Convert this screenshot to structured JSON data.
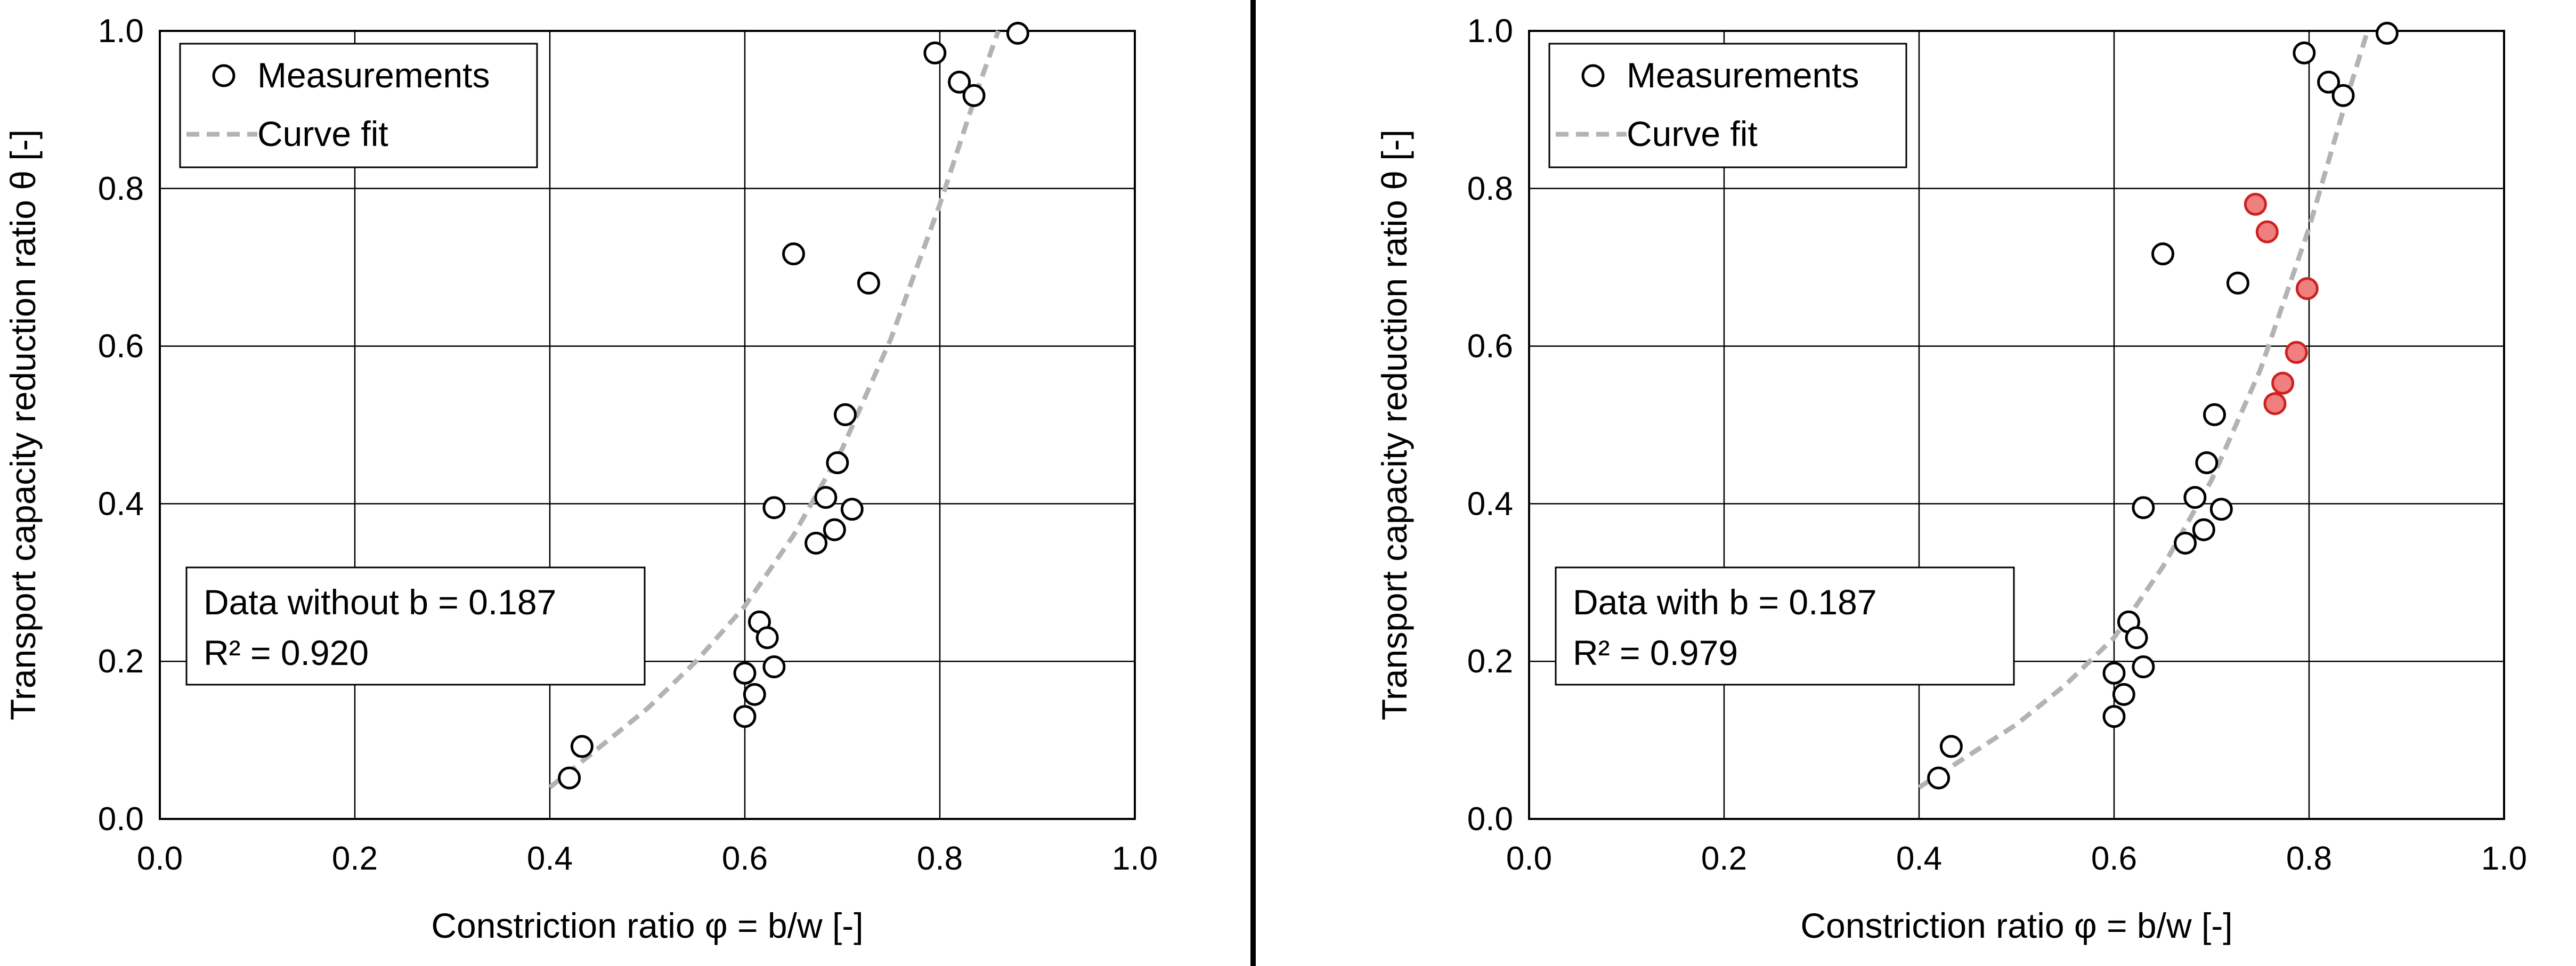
{
  "chart_data": [
    {
      "type": "scatter",
      "title": "",
      "xlabel": "Constriction ratio φ = b/w [-]",
      "ylabel": "Transport capacity reduction ratio θ [-]",
      "xlim": [
        0.0,
        1.0
      ],
      "ylim": [
        0.0,
        1.0
      ],
      "xticks": [
        "0.0",
        "0.2",
        "0.4",
        "0.6",
        "0.8",
        "1.0"
      ],
      "yticks": [
        "0.0",
        "0.2",
        "0.4",
        "0.6",
        "0.8",
        "1.0"
      ],
      "grid": true,
      "legend_position": "top-left",
      "legend": [
        {
          "label": "Measurements",
          "marker": "open-circle"
        },
        {
          "label": "Curve fit",
          "marker": "dashed-line"
        }
      ],
      "annotation": {
        "line1": "Data without b = 0.187",
        "line2": "R² = 0.920"
      },
      "series": [
        {
          "name": "Measurements",
          "color": "#000000",
          "fill": "none",
          "x": [
            0.42,
            0.433,
            0.6,
            0.6,
            0.61,
            0.615,
            0.623,
            0.63,
            0.63,
            0.65,
            0.673,
            0.683,
            0.692,
            0.695,
            0.703,
            0.71,
            0.727,
            0.795,
            0.82,
            0.835,
            0.88
          ],
          "y": [
            0.052,
            0.092,
            0.185,
            0.13,
            0.158,
            0.25,
            0.23,
            0.193,
            0.395,
            0.717,
            0.35,
            0.408,
            0.367,
            0.452,
            0.513,
            0.393,
            0.68,
            0.972,
            0.935,
            0.918,
            0.997
          ]
        }
      ],
      "fit_curve": {
        "name": "Curve fit",
        "color": "#b3b3b3",
        "x": [
          0.4,
          0.45,
          0.5,
          0.55,
          0.6,
          0.65,
          0.7,
          0.75,
          0.8,
          0.84,
          0.86
        ],
        "y": [
          0.04,
          0.09,
          0.14,
          0.2,
          0.27,
          0.36,
          0.47,
          0.61,
          0.78,
          0.93,
          1.0
        ]
      }
    },
    {
      "type": "scatter",
      "title": "",
      "xlabel": "Constriction ratio φ = b/w [-]",
      "ylabel": "Transport capacity reduction ratio θ [-]",
      "xlim": [
        0.0,
        1.0
      ],
      "ylim": [
        0.0,
        1.0
      ],
      "xticks": [
        "0.0",
        "0.2",
        "0.4",
        "0.6",
        "0.8",
        "1.0"
      ],
      "yticks": [
        "0.0",
        "0.2",
        "0.4",
        "0.6",
        "0.8",
        "1.0"
      ],
      "grid": true,
      "legend_position": "top-left",
      "legend": [
        {
          "label": "Measurements",
          "marker": "open-circle"
        },
        {
          "label": "Curve fit",
          "marker": "dashed-line"
        }
      ],
      "annotation": {
        "line1": "Data with b = 0.187",
        "line2": "R² = 0.979"
      },
      "series": [
        {
          "name": "Measurements",
          "color": "#000000",
          "fill": "none",
          "x": [
            0.42,
            0.433,
            0.6,
            0.6,
            0.61,
            0.615,
            0.623,
            0.63,
            0.63,
            0.65,
            0.673,
            0.683,
            0.692,
            0.695,
            0.703,
            0.71,
            0.727,
            0.795,
            0.82,
            0.835,
            0.88
          ],
          "y": [
            0.052,
            0.092,
            0.185,
            0.13,
            0.158,
            0.25,
            0.23,
            0.193,
            0.395,
            0.717,
            0.35,
            0.408,
            0.367,
            0.452,
            0.513,
            0.393,
            0.68,
            0.972,
            0.935,
            0.918,
            0.997
          ]
        },
        {
          "color": "#cc2222",
          "fill": "#f08080",
          "x": [
            0.745,
            0.757,
            0.765,
            0.773,
            0.787,
            0.798
          ],
          "y": [
            0.78,
            0.745,
            0.527,
            0.553,
            0.592,
            0.673
          ]
        }
      ],
      "fit_curve": {
        "name": "Curve fit",
        "color": "#b3b3b3",
        "x": [
          0.4,
          0.45,
          0.5,
          0.55,
          0.6,
          0.65,
          0.7,
          0.75,
          0.8,
          0.84,
          0.86
        ],
        "y": [
          0.04,
          0.08,
          0.12,
          0.17,
          0.23,
          0.32,
          0.43,
          0.57,
          0.75,
          0.92,
          1.0
        ]
      }
    }
  ]
}
